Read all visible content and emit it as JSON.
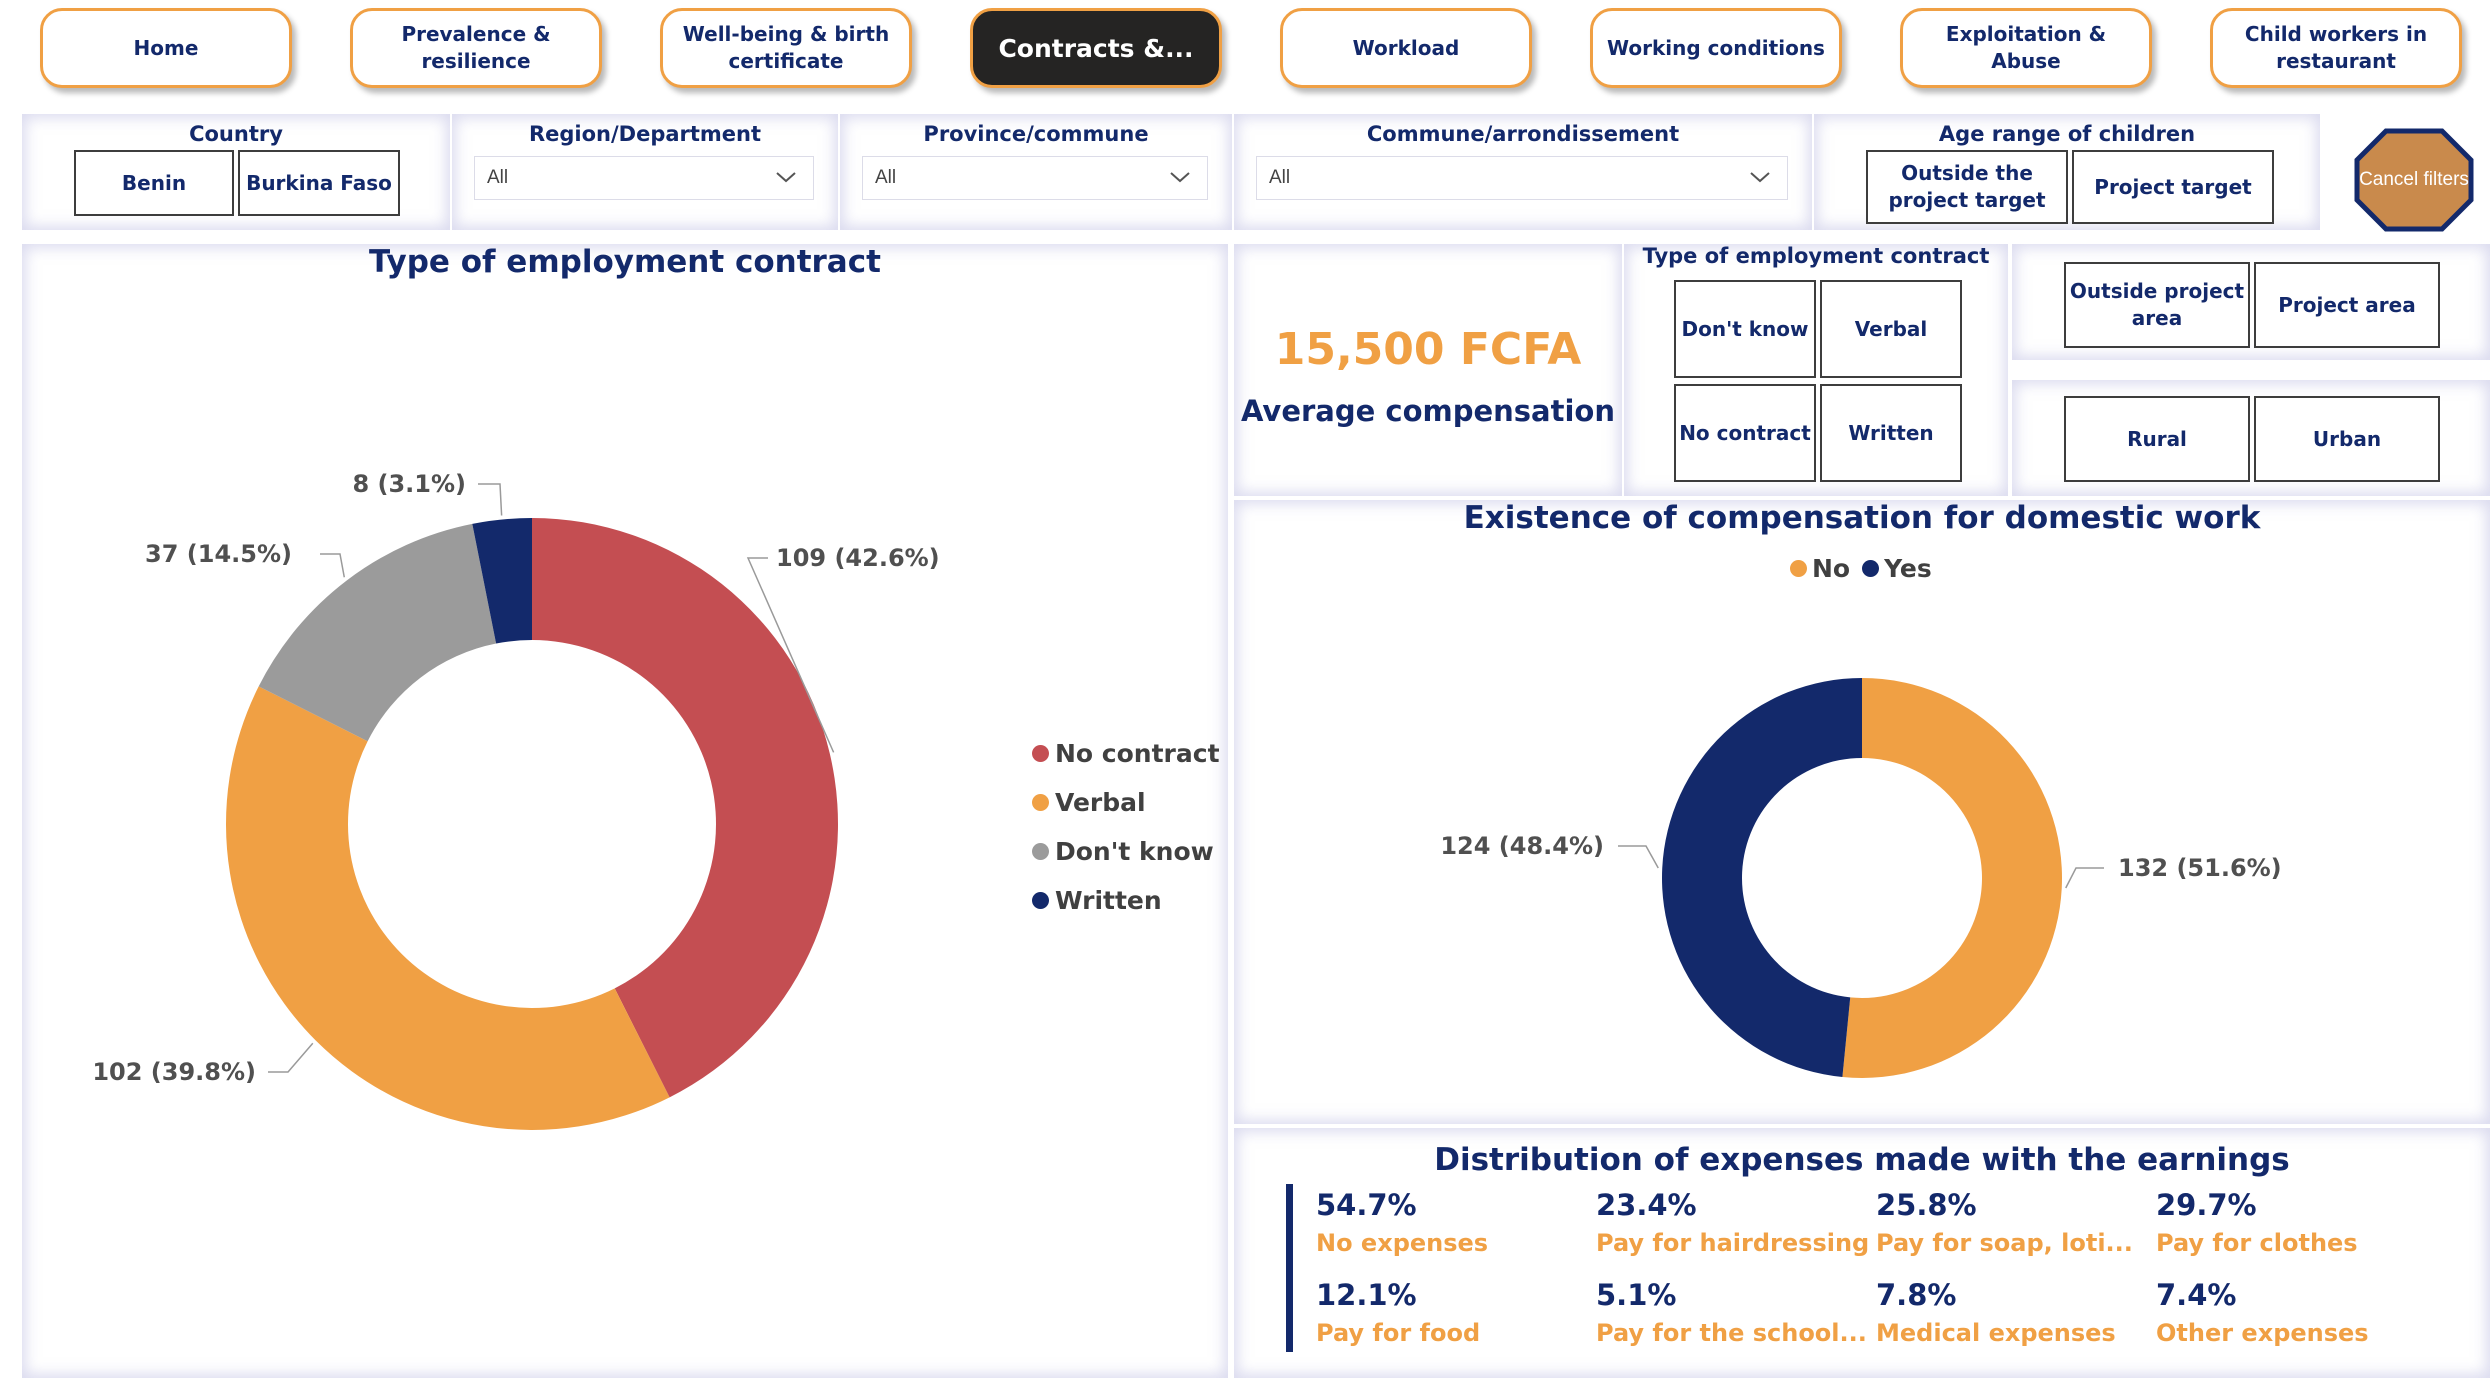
{
  "nav": {
    "items": [
      {
        "label": "Home",
        "active": false
      },
      {
        "label": "Prevalence & resilience",
        "active": false
      },
      {
        "label": "Well-being & birth certificate",
        "active": false
      },
      {
        "label": "Contracts &...",
        "active": true
      },
      {
        "label": "Workload",
        "active": false
      },
      {
        "label": "Working conditions",
        "active": false
      },
      {
        "label": "Exploitation & Abuse",
        "active": false
      },
      {
        "label": "Child workers in restaurant",
        "active": false
      }
    ]
  },
  "filters": {
    "country": {
      "title": "Country",
      "options": [
        "Benin",
        "Burkina Faso"
      ]
    },
    "region": {
      "title": "Region/Department",
      "value": "All"
    },
    "province": {
      "title": "Province/commune",
      "value": "All"
    },
    "commune": {
      "title": "Commune/arrondissement",
      "value": "All"
    },
    "age": {
      "title": "Age range of children",
      "options": [
        "Outside the project target",
        "Project target"
      ]
    },
    "cancel_label": "Cancel filters"
  },
  "kpi": {
    "value": "15,500 FCFA",
    "label": "Average compensation"
  },
  "contract_slicer": {
    "title": "Type of employment contract",
    "options": [
      "Don't know",
      "Verbal",
      "No contract",
      "Written"
    ]
  },
  "area_slicer": {
    "options": [
      "Outside project area",
      "Project area"
    ]
  },
  "zone_slicer": {
    "options": [
      "Rural",
      "Urban"
    ]
  },
  "colors": {
    "accent": "#f0a044",
    "navy": "#13296b",
    "red": "#c44e52",
    "gray": "#9b9b9b",
    "active_bg": "#252423"
  },
  "chart_data": [
    {
      "type": "pie",
      "title": "Type of employment contract",
      "slices": [
        {
          "name": "No contract",
          "value": 109,
          "label": "109 (42.6%)",
          "color": "#c44e52"
        },
        {
          "name": "Verbal",
          "value": 102,
          "label": "102 (39.8%)",
          "color": "#f0a044"
        },
        {
          "name": "Don't know",
          "value": 37,
          "label": "37 (14.5%)",
          "color": "#9b9b9b"
        },
        {
          "name": "Written",
          "value": 8,
          "label": "8 (3.1%)",
          "color": "#13296b"
        }
      ],
      "legend_position": "right"
    },
    {
      "type": "pie",
      "title": "Existence of compensation for domestic work",
      "slices": [
        {
          "name": "No",
          "value": 132,
          "label": "132 (51.6%)",
          "color": "#f0a044"
        },
        {
          "name": "Yes",
          "value": 124,
          "label": "124 (48.4%)",
          "color": "#13296b"
        }
      ],
      "legend_position": "top"
    }
  ],
  "expenses": {
    "title": "Distribution of expenses made with the earnings",
    "items": [
      {
        "value": "54.7%",
        "label": "No expenses"
      },
      {
        "value": "23.4%",
        "label": "Pay for hairdressing"
      },
      {
        "value": "25.8%",
        "label": "Pay for soap, loti..."
      },
      {
        "value": "29.7%",
        "label": "Pay for clothes"
      },
      {
        "value": "12.1%",
        "label": "Pay for food"
      },
      {
        "value": "5.1%",
        "label": "Pay for the school..."
      },
      {
        "value": "7.8%",
        "label": "Medical expenses"
      },
      {
        "value": "7.4%",
        "label": "Other expenses"
      }
    ]
  }
}
